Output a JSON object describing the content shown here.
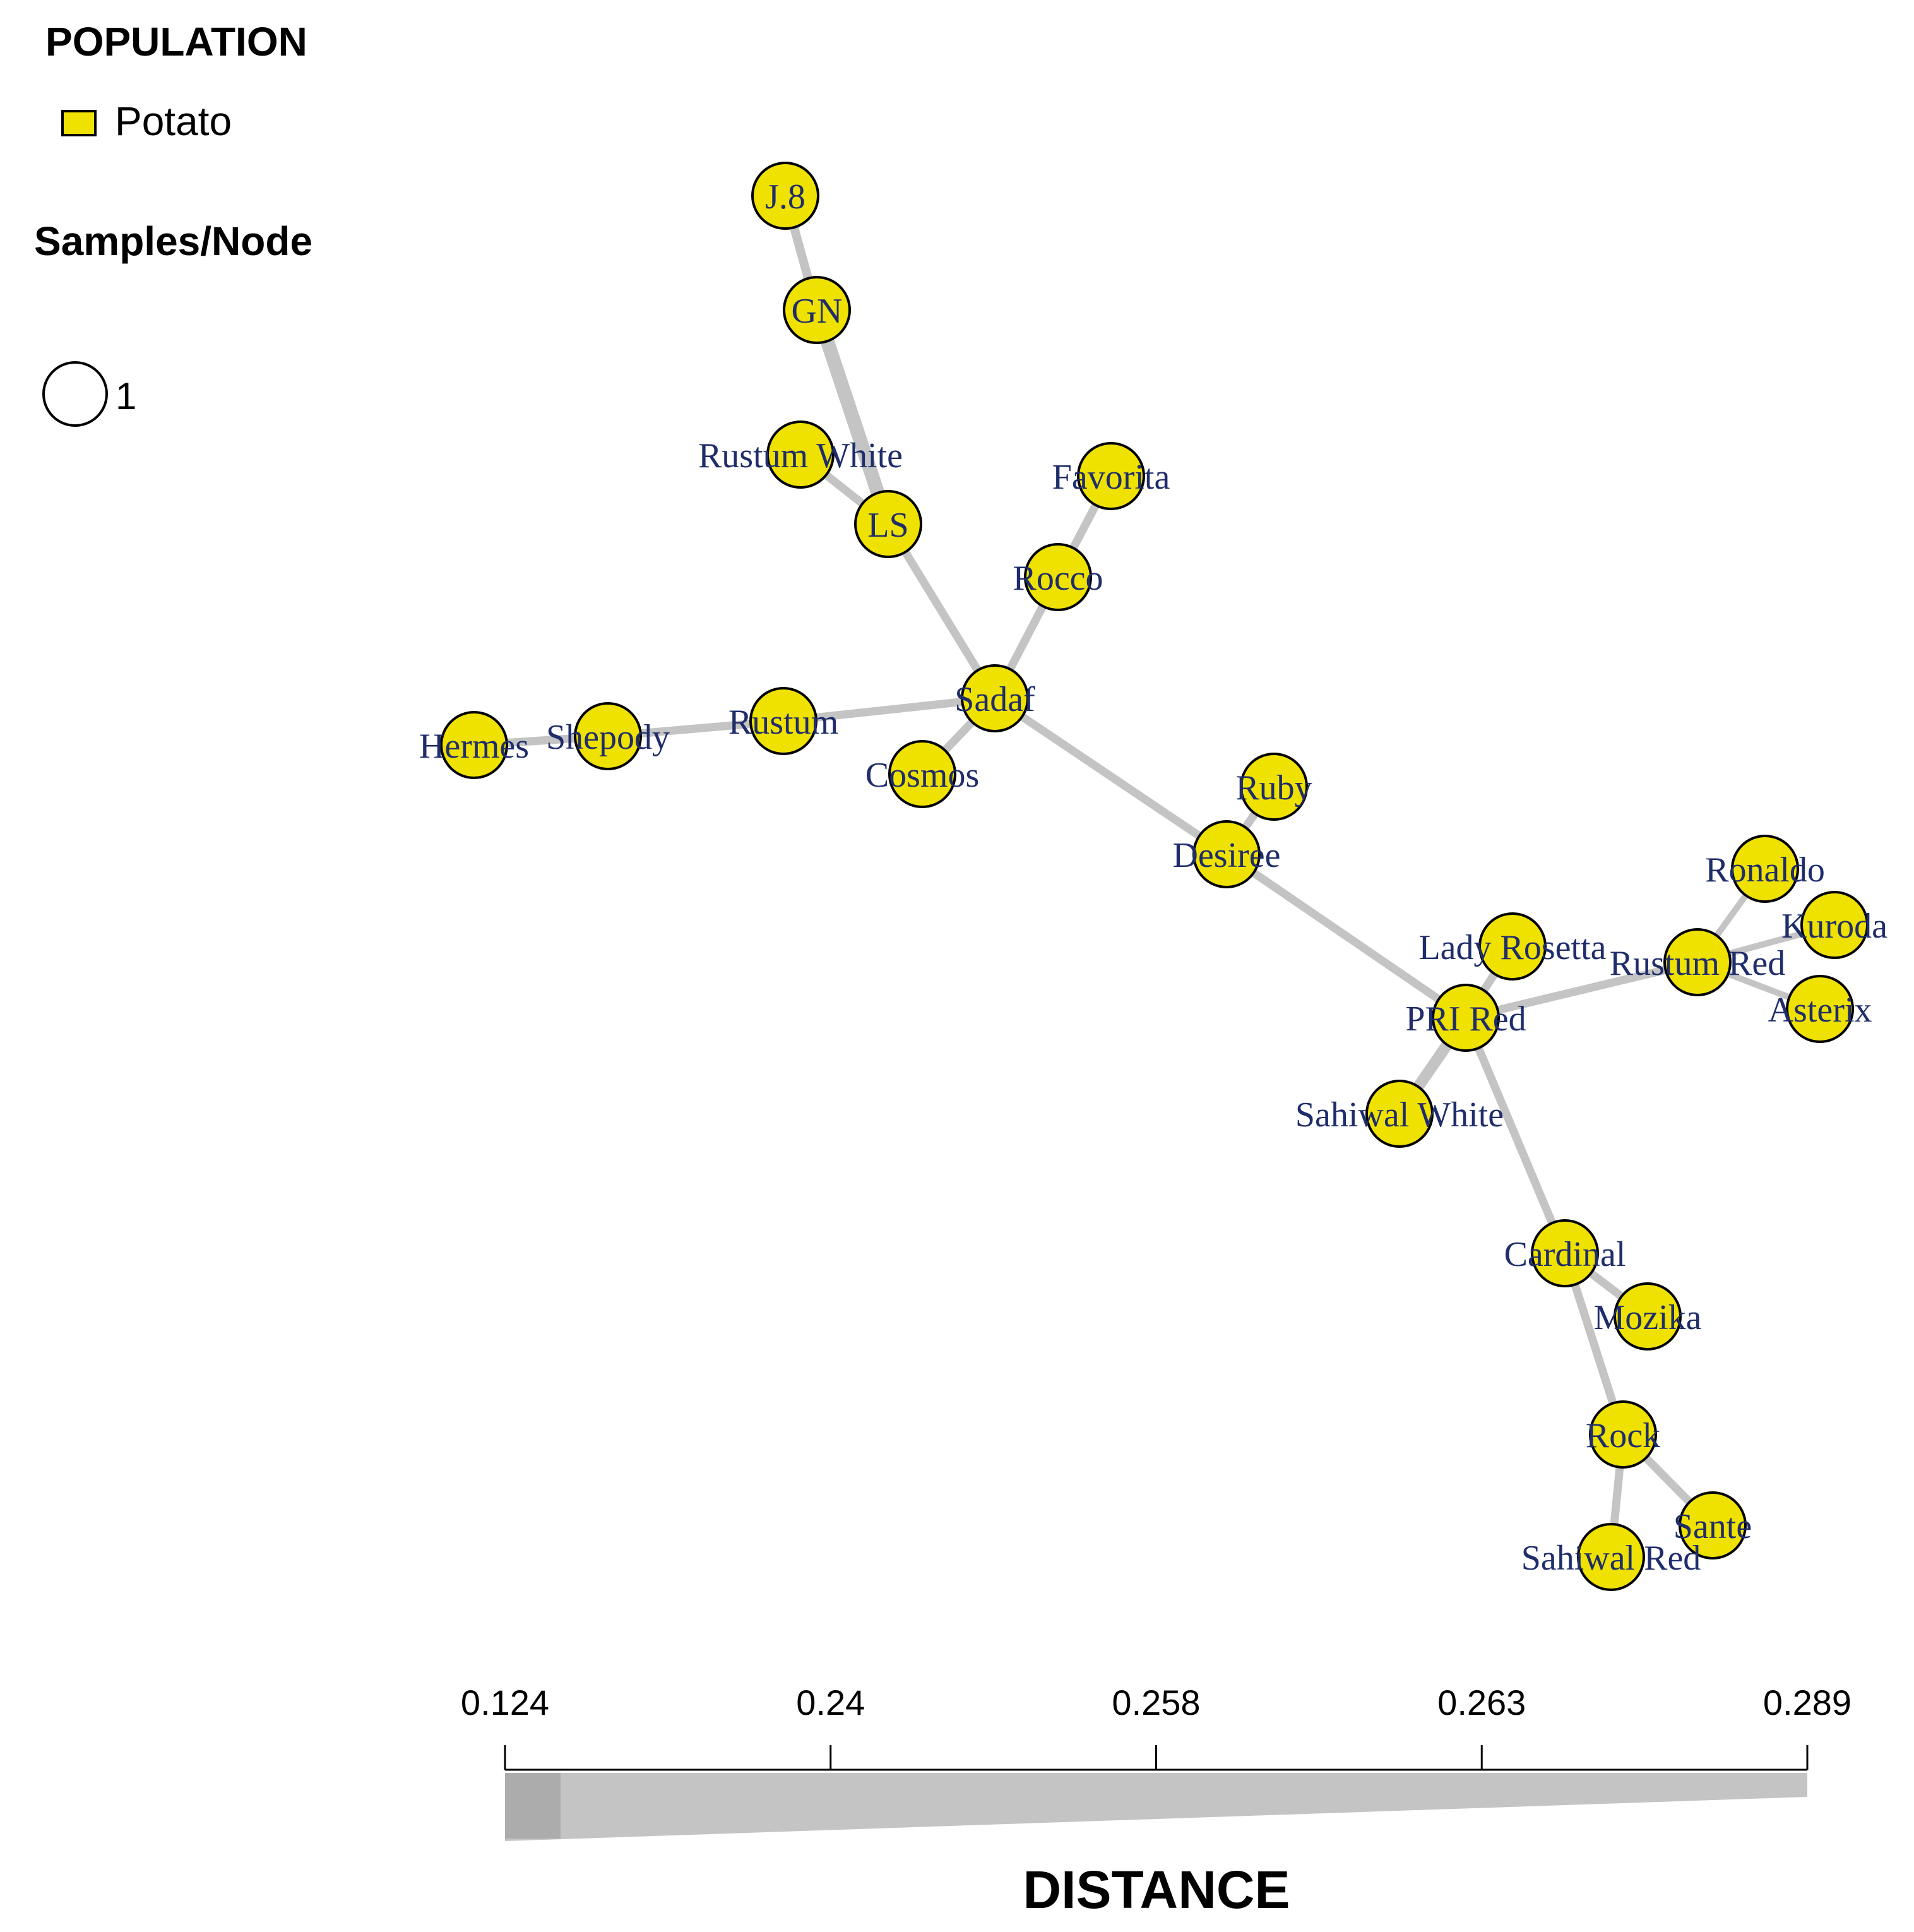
{
  "legend": {
    "population_title": "POPULATION",
    "population_entries": [
      {
        "label": "Potato",
        "color": "#f0e200"
      }
    ],
    "samples_title": "Samples/Node",
    "samples_size_label": "1"
  },
  "network": {
    "node_color": "#f0e200",
    "node_stroke": "#000000",
    "label_color": "#1f2d6b",
    "edge_color": "#c4c4c4",
    "nodes": [
      {
        "id": "J.8",
        "label": "J.8"
      },
      {
        "id": "GN",
        "label": "GN"
      },
      {
        "id": "Rustum White",
        "label": "Rustum White"
      },
      {
        "id": "LS",
        "label": "LS"
      },
      {
        "id": "Favorita",
        "label": "Favorita"
      },
      {
        "id": "Rocco",
        "label": "Rocco"
      },
      {
        "id": "Sadaf",
        "label": "Sadaf"
      },
      {
        "id": "Rustum",
        "label": "Rustum"
      },
      {
        "id": "Shepody",
        "label": "Shepody"
      },
      {
        "id": "Hermes",
        "label": "Hermes"
      },
      {
        "id": "Cosmos",
        "label": "Cosmos"
      },
      {
        "id": "Ruby",
        "label": "Ruby"
      },
      {
        "id": "Desiree",
        "label": "Desiree"
      },
      {
        "id": "Lady Rosetta",
        "label": "Lady Rosetta"
      },
      {
        "id": "PRI Red",
        "label": "PRI Red"
      },
      {
        "id": "Sahiwal White",
        "label": "Sahiwal White"
      },
      {
        "id": "Rustum Red",
        "label": "Rustum Red"
      },
      {
        "id": "Ronaldo",
        "label": "Ronaldo"
      },
      {
        "id": "Kuroda",
        "label": "Kuroda"
      },
      {
        "id": "Asterix",
        "label": "Asterix"
      },
      {
        "id": "Cardinal",
        "label": "Cardinal"
      },
      {
        "id": "Mozika",
        "label": "Mozika"
      },
      {
        "id": "Rock",
        "label": "Rock"
      },
      {
        "id": "Sante",
        "label": "Sante"
      },
      {
        "id": "Sahiwal Red",
        "label": "Sahiwal Red"
      }
    ],
    "edges": [
      {
        "from": "J.8",
        "to": "GN"
      },
      {
        "from": "GN",
        "to": "LS"
      },
      {
        "from": "Rustum White",
        "to": "LS"
      },
      {
        "from": "LS",
        "to": "Sadaf"
      },
      {
        "from": "Favorita",
        "to": "Rocco"
      },
      {
        "from": "Rocco",
        "to": "Sadaf"
      },
      {
        "from": "Hermes",
        "to": "Shepody"
      },
      {
        "from": "Shepody",
        "to": "Rustum"
      },
      {
        "from": "Rustum",
        "to": "Sadaf"
      },
      {
        "from": "Cosmos",
        "to": "Sadaf"
      },
      {
        "from": "Sadaf",
        "to": "Desiree"
      },
      {
        "from": "Ruby",
        "to": "Desiree"
      },
      {
        "from": "Desiree",
        "to": "PRI Red"
      },
      {
        "from": "Lady Rosetta",
        "to": "PRI Red"
      },
      {
        "from": "Sahiwal White",
        "to": "PRI Red"
      },
      {
        "from": "PRI Red",
        "to": "Rustum Red"
      },
      {
        "from": "Ronaldo",
        "to": "Rustum Red"
      },
      {
        "from": "Kuroda",
        "to": "Rustum Red"
      },
      {
        "from": "Asterix",
        "to": "Rustum Red"
      },
      {
        "from": "PRI Red",
        "to": "Cardinal"
      },
      {
        "from": "Cardinal",
        "to": "Mozika"
      },
      {
        "from": "Cardinal",
        "to": "Rock"
      },
      {
        "from": "Rock",
        "to": "Sante"
      },
      {
        "from": "Rock",
        "to": "Sahiwal Red"
      }
    ]
  },
  "distance_scale": {
    "title": "DISTANCE",
    "ticks": [
      "0.124",
      "0.24",
      "0.258",
      "0.263",
      "0.289"
    ],
    "bar_color": "#c4c4c4"
  }
}
